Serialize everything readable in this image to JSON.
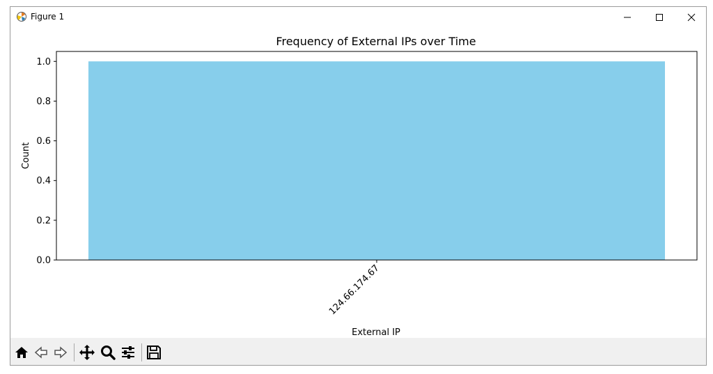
{
  "window": {
    "title": "Figure 1"
  },
  "toolbar": {
    "buttons": [
      "home-icon",
      "back-icon",
      "forward-icon",
      "pan-icon",
      "zoom-icon",
      "configure-icon",
      "save-icon"
    ]
  },
  "colors": {
    "bar": "#87ceeb",
    "toolbar_bg": "#f0f0f0"
  },
  "chart_data": {
    "type": "bar",
    "title": "Frequency of External IPs over Time",
    "xlabel": "External IP",
    "ylabel": "Count",
    "categories": [
      "124.66.174.67"
    ],
    "values": [
      1.0
    ],
    "ylim": [
      0.0,
      1.05
    ],
    "yticks": [
      "0.0",
      "0.2",
      "0.4",
      "0.6",
      "0.8",
      "1.0"
    ],
    "grid": false,
    "legend": false
  }
}
